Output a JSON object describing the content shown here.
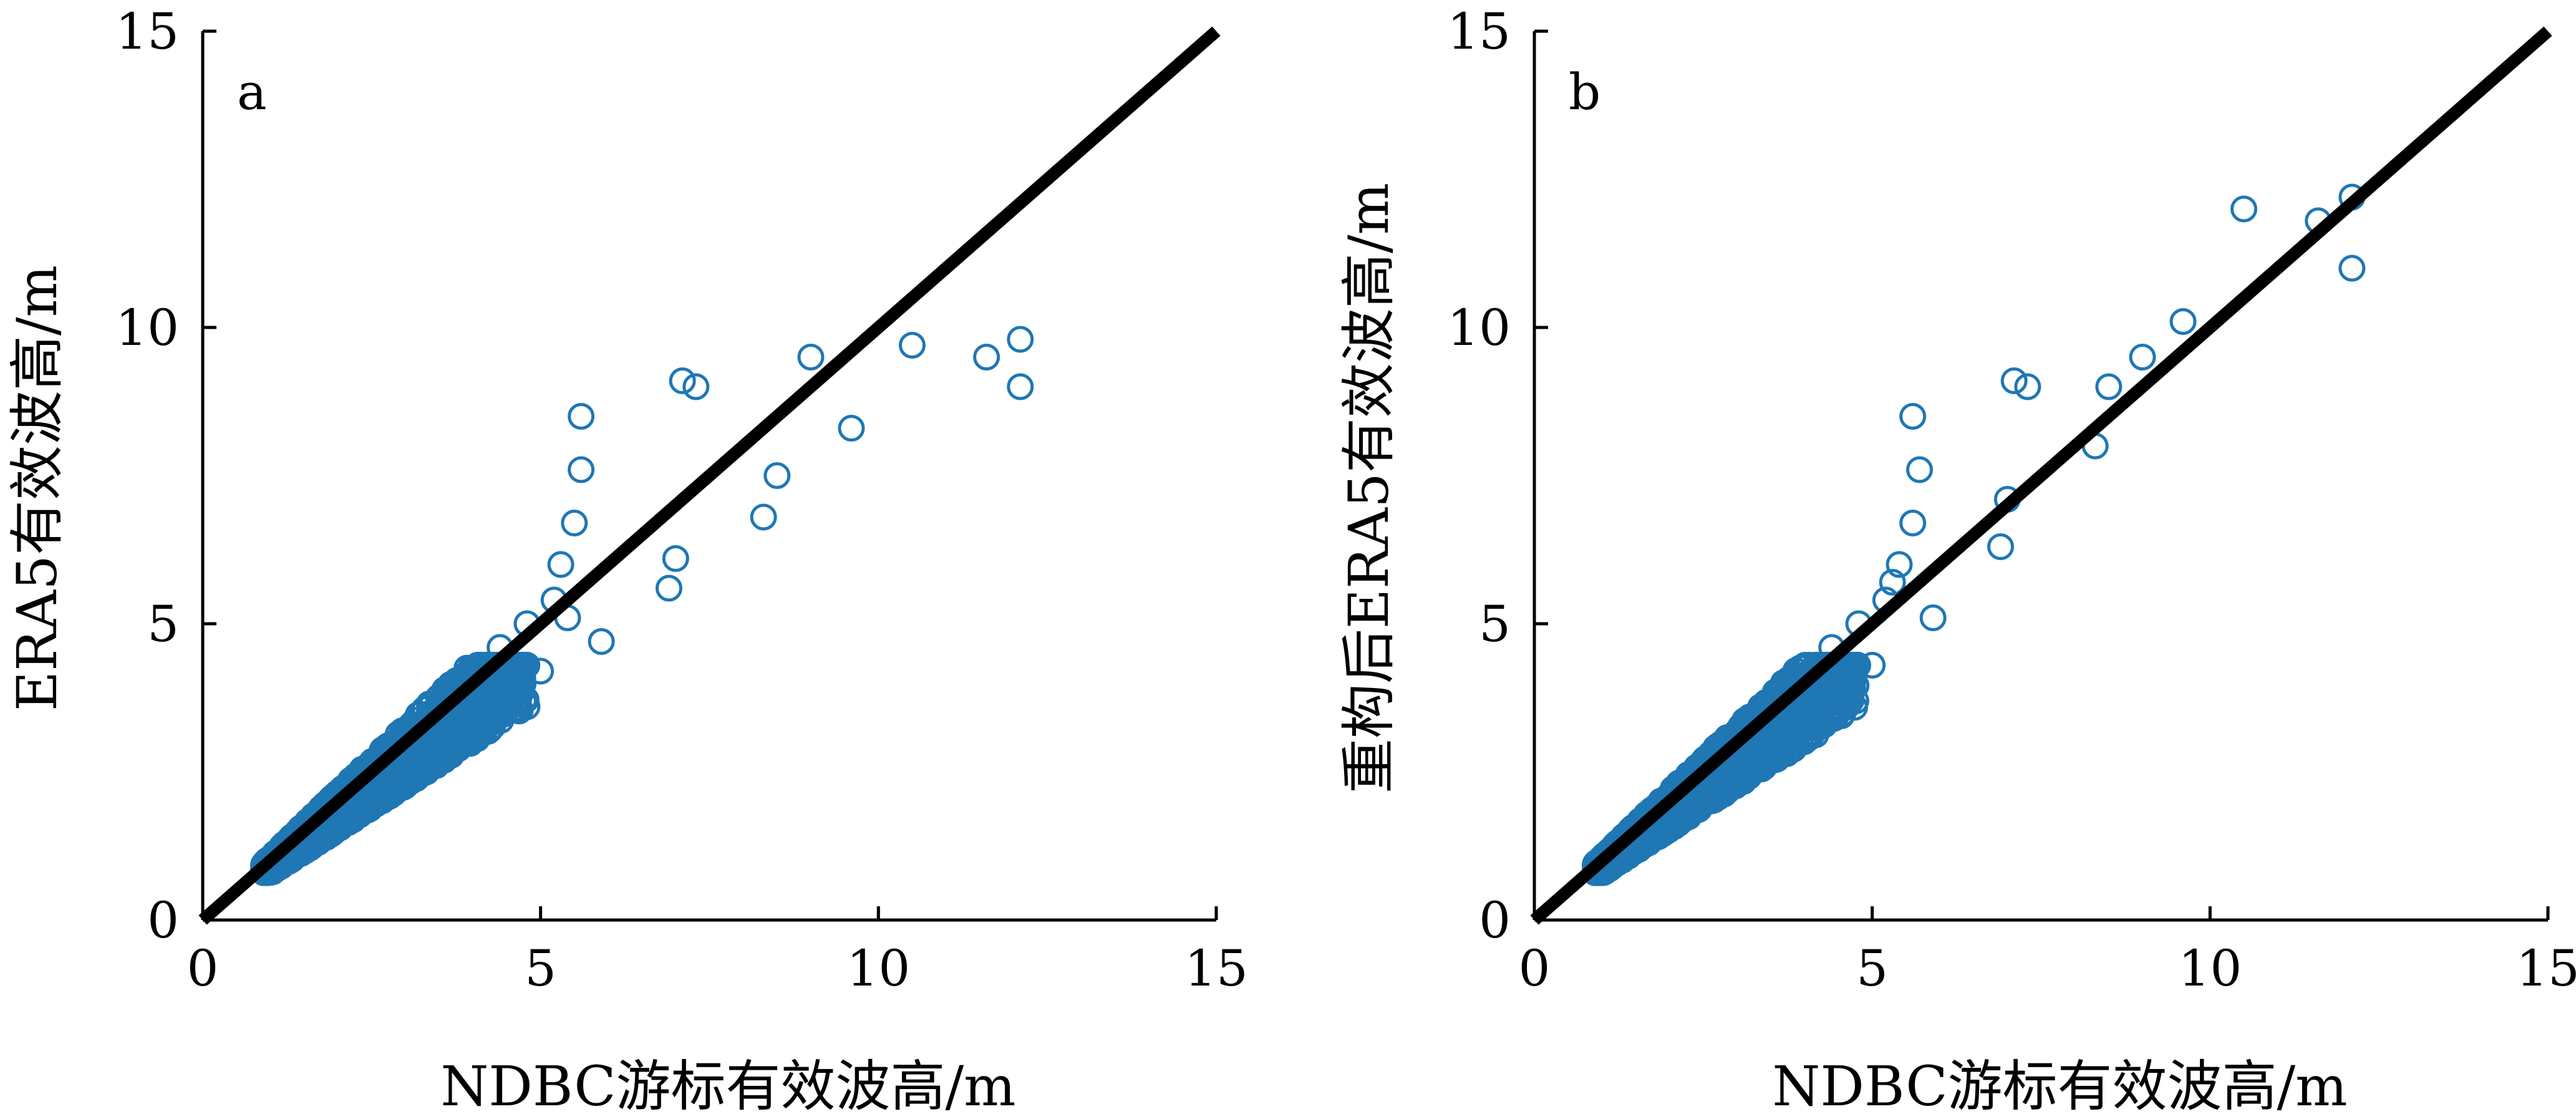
{
  "chart_data": [
    {
      "type": "scatter",
      "panel_label": "a",
      "xlabel": "NDBC游标有效波高/m",
      "ylabel": "ERA5有效波高/m",
      "xlim": [
        0,
        15
      ],
      "ylim": [
        0,
        15
      ],
      "xticks": [
        "0",
        "5",
        "10",
        "15"
      ],
      "yticks": [
        "0",
        "5",
        "10",
        "15"
      ],
      "reference_line": {
        "type": "y=x",
        "color": "#000000"
      },
      "marker": {
        "shape": "open-circle",
        "color": "#1f77b4"
      },
      "dense_cluster": {
        "x_range": [
          0.9,
          4.8
        ],
        "y_range": [
          0.8,
          4.3
        ],
        "center_slope": 0.92
      },
      "points": [
        [
          4.4,
          4.6
        ],
        [
          4.8,
          5.0
        ],
        [
          5.0,
          4.2
        ],
        [
          5.2,
          5.4
        ],
        [
          5.4,
          5.1
        ],
        [
          5.3,
          6.0
        ],
        [
          5.5,
          6.7
        ],
        [
          5.6,
          7.6
        ],
        [
          5.6,
          8.5
        ],
        [
          5.9,
          4.7
        ],
        [
          6.9,
          5.6
        ],
        [
          7.0,
          6.1
        ],
        [
          7.1,
          9.1
        ],
        [
          7.3,
          9.0
        ],
        [
          8.3,
          6.8
        ],
        [
          8.5,
          7.5
        ],
        [
          9.0,
          9.5
        ],
        [
          9.6,
          8.3
        ],
        [
          10.5,
          9.7
        ],
        [
          11.6,
          9.5
        ],
        [
          12.1,
          9.8
        ],
        [
          12.1,
          9.0
        ]
      ]
    },
    {
      "type": "scatter",
      "panel_label": "b",
      "xlabel": "NDBC游标有效波高/m",
      "ylabel": "重构后ERA5有效波高/m",
      "xlim": [
        0,
        15
      ],
      "ylim": [
        0,
        15
      ],
      "xticks": [
        "0",
        "5",
        "10",
        "15"
      ],
      "yticks": [
        "0",
        "5",
        "10",
        "15"
      ],
      "reference_line": {
        "type": "y=x",
        "color": "#000000"
      },
      "marker": {
        "shape": "open-circle",
        "color": "#1f77b4"
      },
      "dense_cluster": {
        "x_range": [
          0.9,
          4.8
        ],
        "y_range": [
          0.8,
          4.3
        ],
        "center_slope": 0.92
      },
      "points": [
        [
          4.4,
          4.6
        ],
        [
          4.8,
          5.0
        ],
        [
          5.0,
          4.3
        ],
        [
          5.2,
          5.4
        ],
        [
          5.3,
          5.7
        ],
        [
          5.4,
          6.0
        ],
        [
          5.6,
          6.7
        ],
        [
          5.7,
          7.6
        ],
        [
          5.6,
          8.5
        ],
        [
          5.9,
          5.1
        ],
        [
          6.9,
          6.3
        ],
        [
          7.0,
          7.1
        ],
        [
          7.1,
          9.1
        ],
        [
          7.3,
          9.0
        ],
        [
          8.3,
          8.0
        ],
        [
          8.5,
          9.0
        ],
        [
          9.0,
          9.5
        ],
        [
          9.6,
          10.1
        ],
        [
          10.5,
          12.0
        ],
        [
          11.6,
          11.8
        ],
        [
          12.1,
          12.2
        ],
        [
          12.1,
          11.0
        ]
      ]
    }
  ]
}
